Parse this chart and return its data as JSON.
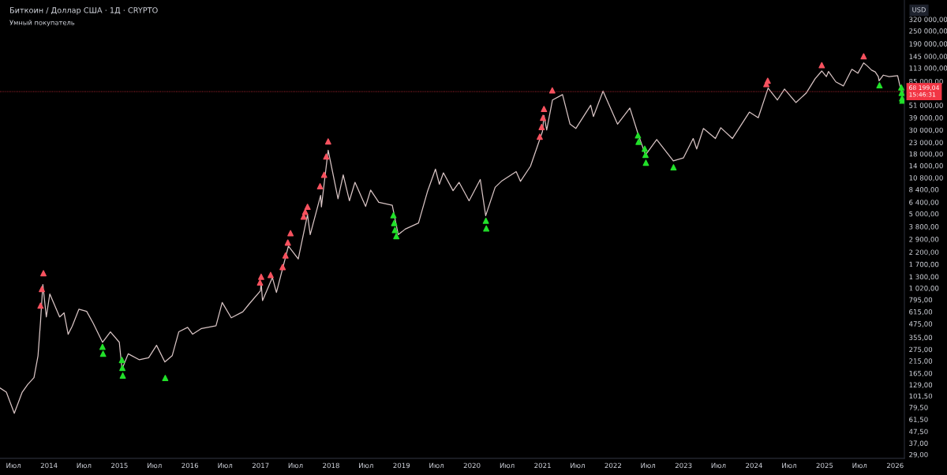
{
  "chart_data": {
    "type": "line",
    "title": "Биткоин / Доллар США · 1Д · CRYPTO",
    "subtitle": "Умный покупатель",
    "ylabel": "USD",
    "log": true,
    "grid": false,
    "xlim": [
      "2013-04-22",
      "2026-02-18"
    ],
    "xticks": [
      {
        "value": "2013-07-01",
        "label": "Июл"
      },
      {
        "value": "2014-01-01",
        "label": "2014"
      },
      {
        "value": "2014-07-01",
        "label": "Июл"
      },
      {
        "value": "2015-01-01",
        "label": "2015"
      },
      {
        "value": "2015-07-01",
        "label": "Июл"
      },
      {
        "value": "2016-01-01",
        "label": "2016"
      },
      {
        "value": "2016-07-01",
        "label": "Июл"
      },
      {
        "value": "2017-01-01",
        "label": "2017"
      },
      {
        "value": "2017-07-01",
        "label": "Июл"
      },
      {
        "value": "2018-01-01",
        "label": "2018"
      },
      {
        "value": "2018-07-01",
        "label": "Июл"
      },
      {
        "value": "2019-01-01",
        "label": "2019"
      },
      {
        "value": "2019-07-01",
        "label": "Июл"
      },
      {
        "value": "2020-01-01",
        "label": "2020"
      },
      {
        "value": "2020-07-01",
        "label": "Июл"
      },
      {
        "value": "2021-01-01",
        "label": "2021"
      },
      {
        "value": "2021-07-01",
        "label": "Июл"
      },
      {
        "value": "2022-01-01",
        "label": "2022"
      },
      {
        "value": "2022-07-01",
        "label": "Июл"
      },
      {
        "value": "2023-01-01",
        "label": "2023"
      },
      {
        "value": "2023-07-01",
        "label": "Июл"
      },
      {
        "value": "2024-01-01",
        "label": "2024"
      },
      {
        "value": "2024-07-01",
        "label": "Июл"
      },
      {
        "value": "2025-01-01",
        "label": "2025"
      },
      {
        "value": "2025-07-01",
        "label": "Июл"
      },
      {
        "value": "2026-01-01",
        "label": "2026"
      }
    ],
    "ylim": [
      26.7,
      484000
    ],
    "yticks": [
      {
        "value": 320000,
        "label": "320 000,00"
      },
      {
        "value": 250000,
        "label": "250 000,00"
      },
      {
        "value": 190000,
        "label": "190 000,00"
      },
      {
        "value": 145000,
        "label": "145 000,00"
      },
      {
        "value": 113000,
        "label": "113 000,00"
      },
      {
        "value": 85000,
        "label": "85 000,00"
      },
      {
        "value": 51000,
        "label": "51 000,00"
      },
      {
        "value": 39000,
        "label": "39 000,00"
      },
      {
        "value": 30000,
        "label": "30 000,00"
      },
      {
        "value": 23000,
        "label": "23 000,00"
      },
      {
        "value": 18000,
        "label": "18 000,00"
      },
      {
        "value": 14000,
        "label": "14 000,00"
      },
      {
        "value": 10800,
        "label": "10 800,00"
      },
      {
        "value": 8400,
        "label": "8 400,00"
      },
      {
        "value": 6400,
        "label": "6 400,00"
      },
      {
        "value": 5000,
        "label": "5 000,00"
      },
      {
        "value": 3800,
        "label": "3 800,00"
      },
      {
        "value": 2900,
        "label": "2 900,00"
      },
      {
        "value": 2200,
        "label": "2 200,00"
      },
      {
        "value": 1700,
        "label": "1 700,00"
      },
      {
        "value": 1300,
        "label": "1 300,00"
      },
      {
        "value": 1020,
        "label": "1 020,00"
      },
      {
        "value": 795,
        "label": "795,00"
      },
      {
        "value": 615,
        "label": "615,00"
      },
      {
        "value": 475,
        "label": "475,00"
      },
      {
        "value": 355,
        "label": "355,00"
      },
      {
        "value": 275,
        "label": "275,00"
      },
      {
        "value": 215,
        "label": "215,00"
      },
      {
        "value": 165,
        "label": "165,00"
      },
      {
        "value": 129,
        "label": "129,00"
      },
      {
        "value": 101.5,
        "label": "101,50"
      },
      {
        "value": 79.5,
        "label": "79,50"
      },
      {
        "value": 61.5,
        "label": "61,50"
      },
      {
        "value": 47.5,
        "label": "47,50"
      },
      {
        "value": 37,
        "label": "37,00"
      },
      {
        "value": 29,
        "label": "29,00"
      }
    ],
    "ref_lines": [
      {
        "axis": "y",
        "value": 68199.04,
        "label": "68 199,04\n15:46:31",
        "color": "#f23645"
      }
    ],
    "series": [
      {
        "color": "#d8c4c4",
        "marker": "none",
        "x": [
          "2013-04-23",
          "2013-05-25",
          "2013-07-05",
          "2013-08-15",
          "2013-09-13",
          "2013-10-15",
          "2013-11-05",
          "2013-11-18",
          "2013-11-30",
          "2013-12-18",
          "2014-01-05",
          "2014-02-25",
          "2014-03-20",
          "2014-04-10",
          "2014-05-01",
          "2014-06-05",
          "2014-07-15",
          "2014-08-18",
          "2014-10-05",
          "2014-11-15",
          "2014-12-31",
          "2015-01-14",
          "2015-02-15",
          "2015-04-14",
          "2015-06-01",
          "2015-07-12",
          "2015-08-24",
          "2015-10-01",
          "2015-11-04",
          "2015-12-20",
          "2016-01-15",
          "2016-03-01",
          "2016-05-15",
          "2016-06-16",
          "2016-08-02",
          "2016-10-01",
          "2016-11-01",
          "2016-12-31",
          "2017-01-04",
          "2017-01-11",
          "2017-03-03",
          "2017-03-24",
          "2017-05-25",
          "2017-07-15",
          "2017-09-01",
          "2017-09-15",
          "2017-11-08",
          "2017-11-12",
          "2017-12-17",
          "2018-02-06",
          "2018-03-05",
          "2018-04-06",
          "2018-05-05",
          "2018-06-29",
          "2018-07-25",
          "2018-09-05",
          "2018-11-14",
          "2018-12-15",
          "2019-01-20",
          "2019-03-30",
          "2019-05-15",
          "2019-06-26",
          "2019-07-16",
          "2019-08-06",
          "2019-09-25",
          "2019-10-26",
          "2019-12-17",
          "2020-02-13",
          "2020-03-12",
          "2020-04-30",
          "2020-06-01",
          "2020-08-17",
          "2020-09-08",
          "2020-10-30",
          "2020-12-31",
          "2021-01-08",
          "2021-01-22",
          "2021-02-21",
          "2021-04-14",
          "2021-05-23",
          "2021-06-22",
          "2021-09-07",
          "2021-09-21",
          "2021-11-10",
          "2022-01-24",
          "2022-03-29",
          "2022-05-12",
          "2022-06-18",
          "2022-08-15",
          "2022-11-09",
          "2022-12-31",
          "2023-02-20",
          "2023-03-10",
          "2023-04-14",
          "2023-06-15",
          "2023-07-13",
          "2023-09-11",
          "2023-12-08",
          "2024-01-23",
          "2024-03-14",
          "2024-05-01",
          "2024-06-07",
          "2024-08-05",
          "2024-09-27",
          "2024-11-13",
          "2024-12-17",
          "2025-01-10",
          "2025-01-21",
          "2025-02-28",
          "2025-04-08",
          "2025-05-22",
          "2025-06-22",
          "2025-07-22",
          "2025-08-10",
          "2025-09-01",
          "2025-09-20",
          "2025-10-06",
          "2025-10-10",
          "2025-11-01",
          "2025-12-01",
          "2026-01-14",
          "2026-02-05",
          "2026-02-12"
        ],
        "values": [
          120,
          110,
          70,
          110,
          130,
          150,
          240,
          500,
          1100,
          550,
          900,
          550,
          600,
          380,
          450,
          650,
          620,
          480,
          320,
          400,
          320,
          180,
          250,
          220,
          230,
          300,
          210,
          240,
          400,
          440,
          380,
          430,
          455,
          750,
          540,
          615,
          720,
          960,
          1130,
          780,
          1280,
          930,
          2500,
          1900,
          4900,
          3200,
          7400,
          5800,
          19500,
          6900,
          11500,
          6600,
          9800,
          5850,
          8300,
          6400,
          6000,
          3200,
          3600,
          4100,
          8000,
          13000,
          9400,
          12000,
          8200,
          9800,
          6600,
          10400,
          4800,
          8800,
          10000,
          12300,
          10000,
          13800,
          29000,
          41000,
          30000,
          57000,
          64000,
          34000,
          31000,
          51000,
          40000,
          69000,
          34000,
          48000,
          27000,
          17600,
          24500,
          15500,
          16500,
          25000,
          20000,
          31000,
          25000,
          31500,
          25000,
          44000,
          39000,
          73500,
          57000,
          72000,
          54000,
          66000,
          90000,
          106000,
          94000,
          105000,
          84000,
          77000,
          110000,
          101000,
          126000,
          118000,
          108000,
          104000,
          94000,
          86000,
          97000,
          94000,
          96000,
          64000,
          68199.04
        ]
      },
      {
        "type": "scatter",
        "color": "#f7525f",
        "marker": "triangle",
        "x": [
          "2013-11-18",
          "2013-11-25",
          "2013-12-03",
          "2016-12-29",
          "2017-01-04",
          "2017-02-22",
          "2017-04-25",
          "2017-05-10",
          "2017-05-22",
          "2017-06-05",
          "2017-08-12",
          "2017-08-20",
          "2017-09-01",
          "2017-11-05",
          "2017-11-26",
          "2017-12-07",
          "2017-12-17",
          "2020-12-17",
          "2020-12-27",
          "2021-01-03",
          "2021-01-08",
          "2021-02-20",
          "2024-03-05",
          "2024-03-12",
          "2024-12-17",
          "2025-07-22"
        ],
        "values": [
          700,
          1000,
          1400,
          1150,
          1300,
          1350,
          1600,
          2050,
          2700,
          3300,
          4700,
          5200,
          5800,
          9000,
          11500,
          17000,
          23500,
          26000,
          32000,
          39000,
          47000,
          70000,
          80000,
          86000,
          120000,
          145000
        ]
      },
      {
        "type": "scatter",
        "color": "#22e02a",
        "marker": "triangle",
        "x": [
          "2014-10-05",
          "2014-10-08",
          "2015-01-14",
          "2015-01-16",
          "2015-01-18",
          "2015-08-26",
          "2018-11-20",
          "2018-11-24",
          "2018-11-28",
          "2018-12-05",
          "2020-03-13",
          "2020-03-15",
          "2022-05-10",
          "2022-05-13",
          "2022-06-14",
          "2022-06-18",
          "2022-06-20",
          "2022-11-10",
          "2025-10-12",
          "2026-02-02",
          "2026-02-04",
          "2026-02-06",
          "2026-02-08"
        ],
        "values": [
          290,
          250,
          219,
          185,
          157,
          149,
          4840,
          4100,
          3530,
          3100,
          4300,
          3650,
          26700,
          23300,
          20100,
          17600,
          14900,
          13500,
          78000,
          74500,
          66400,
          59000,
          56200
        ]
      }
    ]
  }
}
